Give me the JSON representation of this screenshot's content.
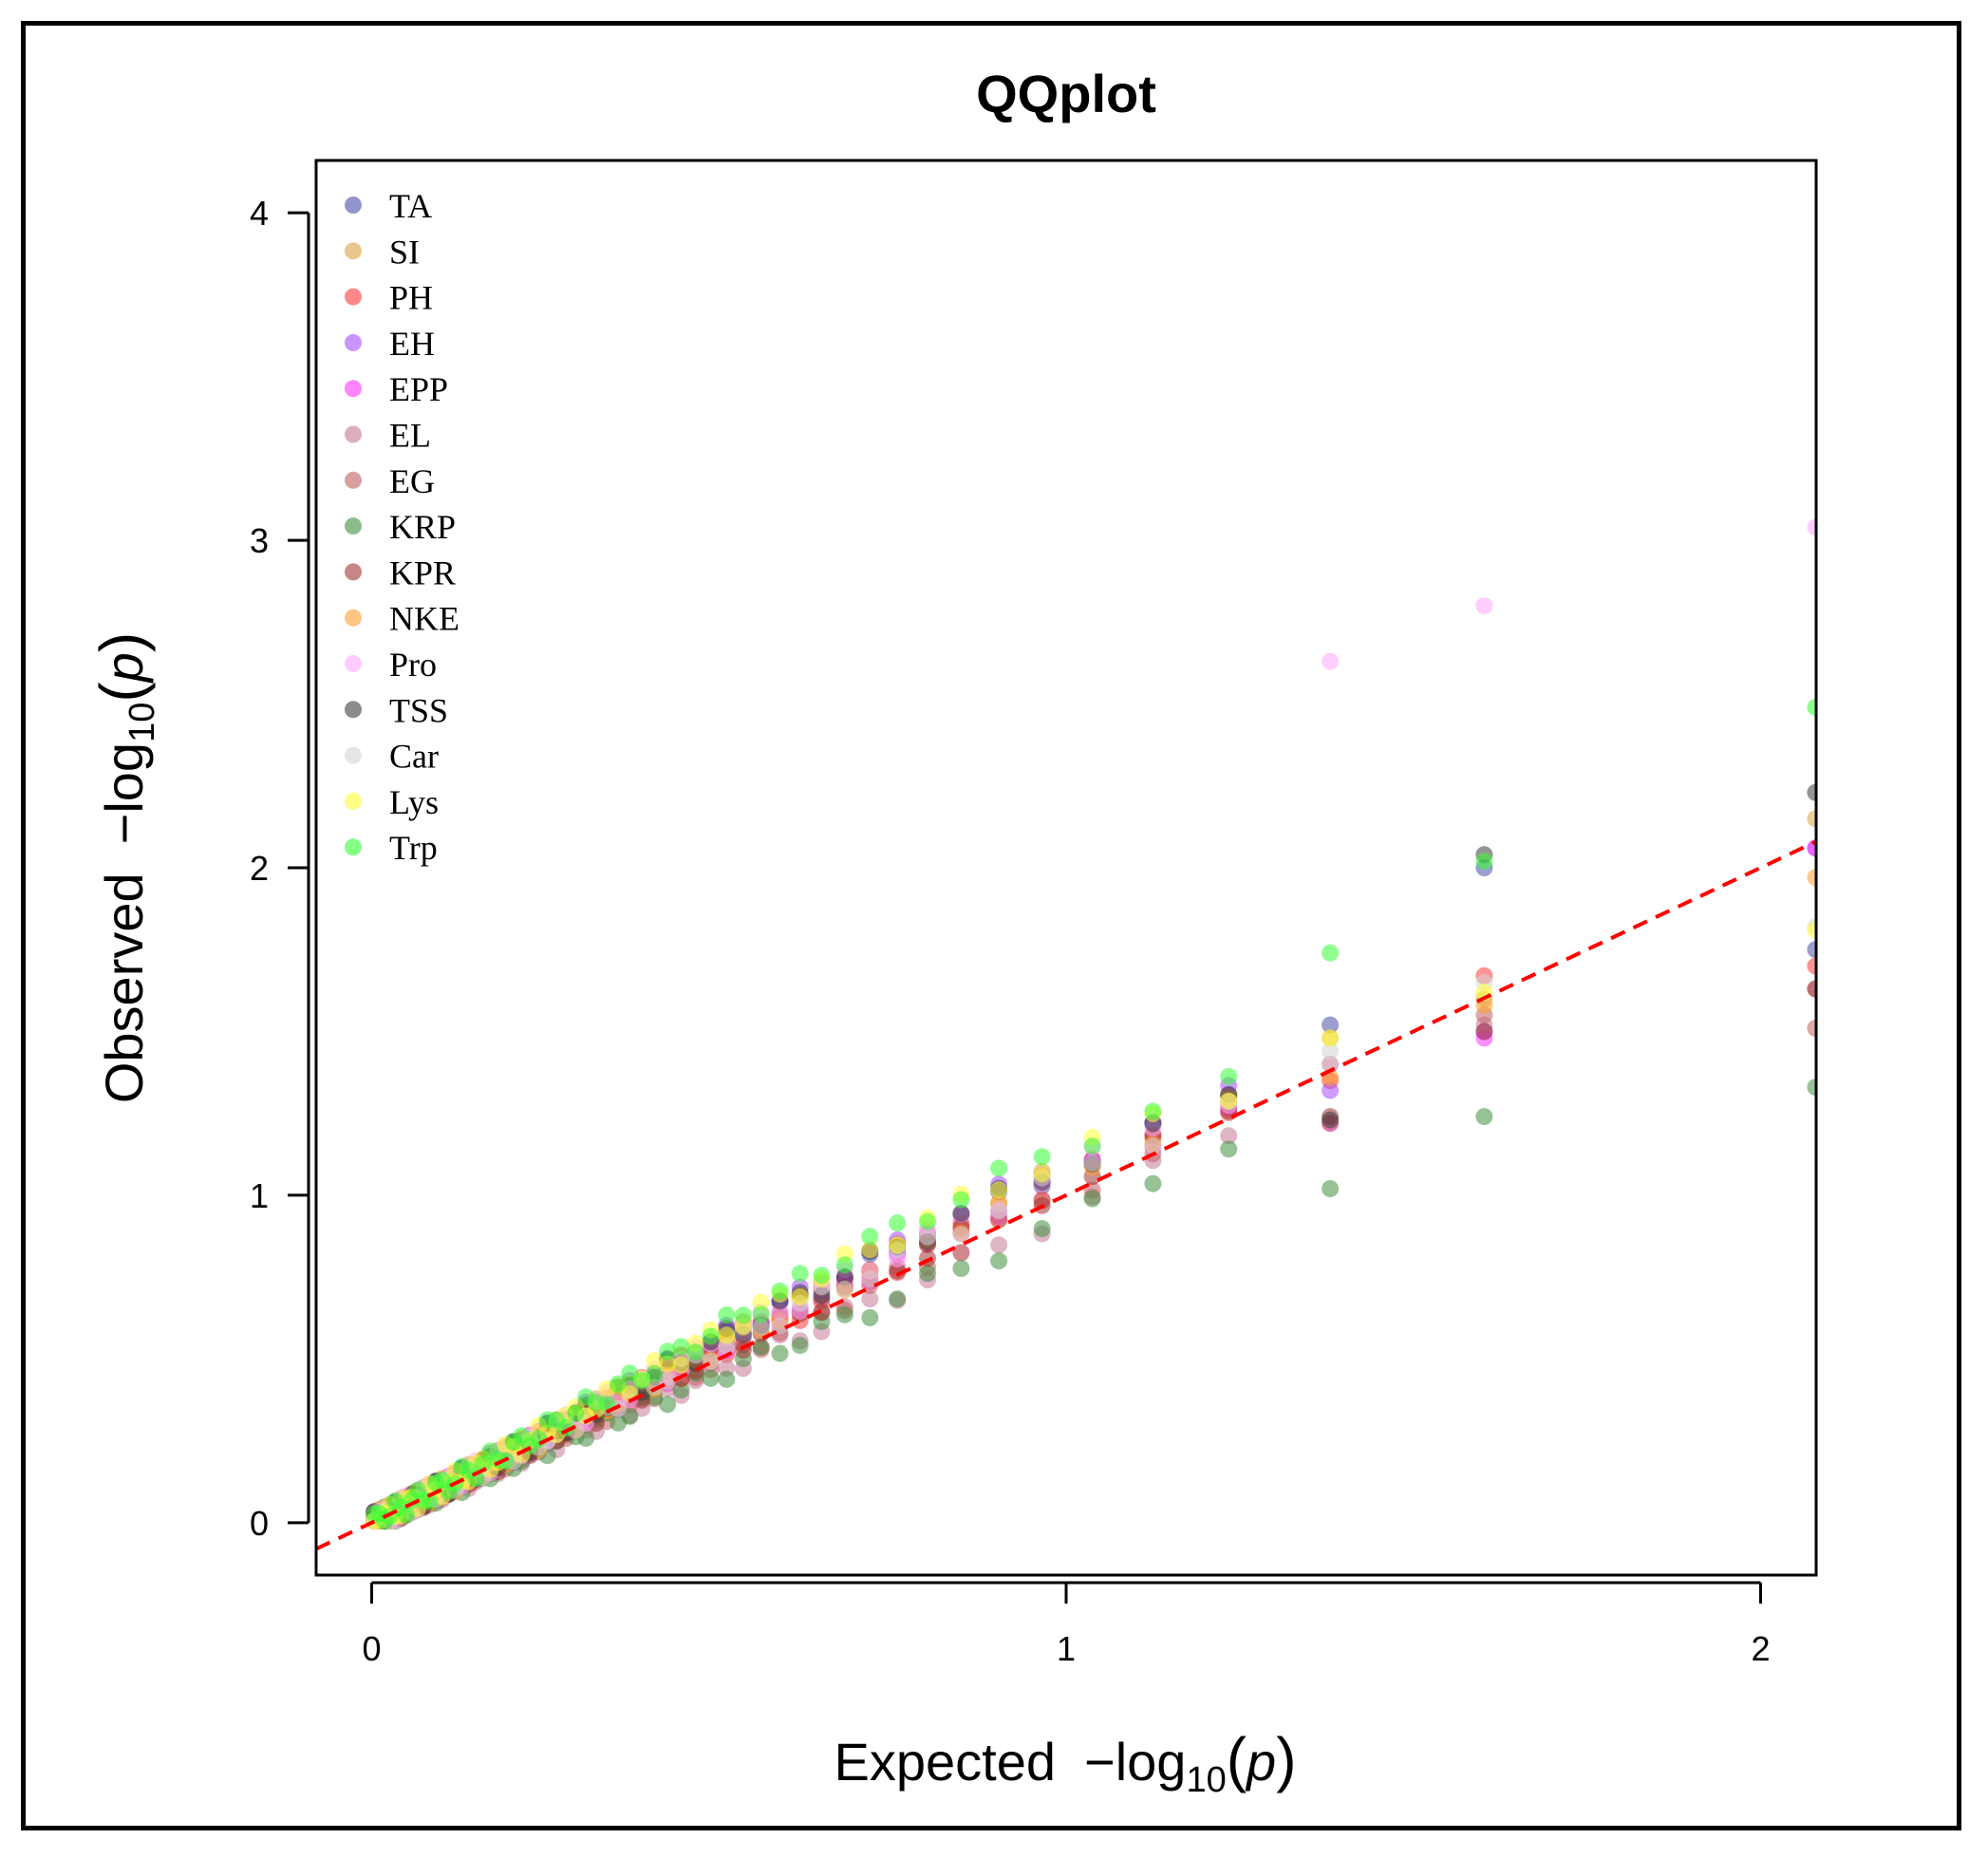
{
  "chart_data": {
    "type": "scatter",
    "title": "QQplot",
    "xlabel": {
      "prefix": "Expected",
      "op": "−log",
      "sub": "10",
      "arg": "p"
    },
    "ylabel": {
      "prefix": "Observed",
      "op": "−log",
      "sub": "10",
      "arg": "p"
    },
    "xlim": [
      -0.08,
      2.08
    ],
    "ylim": [
      -0.16,
      4.16
    ],
    "xticks": [
      0,
      1,
      2
    ],
    "xtick_labels": [
      "0",
      "1",
      "2"
    ],
    "yticks": [
      0,
      1,
      2,
      3,
      4
    ],
    "ytick_labels": [
      "0",
      "1",
      "2",
      "3",
      "4"
    ],
    "legend_position": "top-left",
    "reference_line": {
      "color": "#ff0000",
      "style": "dashed",
      "slope": 1,
      "intercept": 0
    },
    "n_points": 60,
    "series": [
      {
        "name": "TA",
        "color": "#4a4fa8",
        "curve": [
          0.5,
          0.75
        ],
        "top": [
          1.52,
          2.0,
          1.75
        ]
      },
      {
        "name": "SI",
        "color": "#d9a441",
        "curve": [
          0.4,
          0.85
        ],
        "top": [
          1.48,
          1.6,
          2.15
        ]
      },
      {
        "name": "PH",
        "color": "#ff3b3b",
        "curve": [
          0.1,
          0.7
        ],
        "top": [
          1.35,
          1.67,
          1.7
        ]
      },
      {
        "name": "EH",
        "color": "#a64dff",
        "curve": [
          0.6,
          0.95
        ],
        "top": [
          1.32,
          1.5,
          2.06
        ]
      },
      {
        "name": "EPP",
        "color": "#ff33ff",
        "curve": [
          0.3,
          0.55
        ],
        "top": [
          1.22,
          1.48,
          2.06
        ]
      },
      {
        "name": "EL",
        "color": "#c47a95",
        "curve": [
          -0.35,
          -0.45
        ],
        "top": [
          1.4,
          1.52,
          1.63
        ]
      },
      {
        "name": "EG",
        "color": "#c26060",
        "curve": [
          -0.2,
          0.4
        ],
        "top": [
          1.22,
          1.55,
          1.51
        ]
      },
      {
        "name": "KRP",
        "color": "#3f8f3f",
        "curve": [
          -0.3,
          -1.0
        ],
        "top": [
          1.02,
          1.24,
          1.33
        ]
      },
      {
        "name": "KPR",
        "color": "#a03535",
        "curve": [
          0.2,
          0.25
        ],
        "top": [
          1.24,
          1.5,
          1.63
        ]
      },
      {
        "name": "NKE",
        "color": "#ff9f2e",
        "curve": [
          0.45,
          0.5
        ],
        "top": [
          1.36,
          1.58,
          1.97
        ]
      },
      {
        "name": "Pro",
        "color": "#ffa6ff",
        "curve": [
          0.35,
          1.0
        ],
        "top": [
          2.63,
          2.8,
          3.04
        ]
      },
      {
        "name": "TSS",
        "color": "#3d3d3d",
        "curve": [
          0.65,
          0.6
        ],
        "top": [
          1.23,
          2.04,
          2.23
        ]
      },
      {
        "name": "Car",
        "color": "#d4d4d4",
        "curve": [
          0.3,
          0.65
        ],
        "top": [
          1.44,
          1.65,
          1.82
        ]
      },
      {
        "name": "Lys",
        "color": "#ffff33",
        "curve": [
          0.9,
          0.9
        ],
        "top": [
          1.48,
          1.62,
          1.81
        ]
      },
      {
        "name": "Trp",
        "color": "#33ff33",
        "curve": [
          1.0,
          1.2
        ],
        "top": [
          1.74,
          2.02,
          2.49
        ]
      }
    ]
  }
}
